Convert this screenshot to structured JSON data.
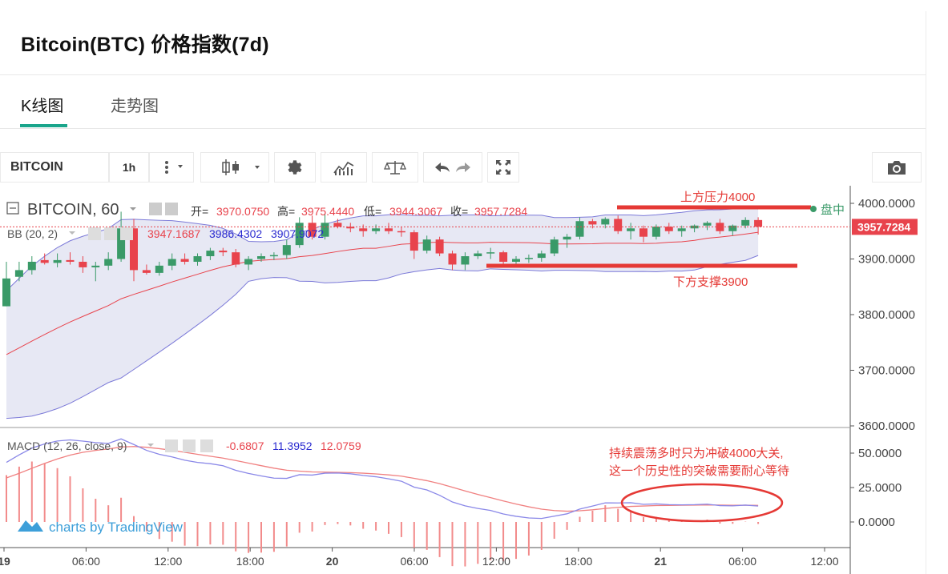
{
  "page": {
    "title": "Bitcoin(BTC) 价格指数(7d)",
    "tabs": [
      {
        "label": "K线图",
        "active": true
      },
      {
        "label": "走势图",
        "active": false
      }
    ]
  },
  "toolbar": {
    "symbol": "BITCOIN",
    "interval": "1h",
    "icons": [
      "more-vert-icon",
      "chevron-down-icon",
      "candles-icon",
      "chevron-down-icon",
      "gear-icon",
      "indicators-icon",
      "compare-icon",
      "undo-icon",
      "redo-icon",
      "fullscreen-icon",
      "camera-icon"
    ]
  },
  "legend": {
    "symbol": "BITCOIN, 60",
    "open_label": "开=",
    "open": "3970.0750",
    "high_label": "高=",
    "high": "3975.4440",
    "low_label": "低=",
    "low": "3944.3067",
    "close_label": "收=",
    "close": "3957.7284",
    "bb_label": "BB (20, 2)",
    "bb_mid": "3947.1687",
    "bb_upper": "3986.4302",
    "bb_lower": "3907.9072",
    "macd_label": "MACD (12, 26, close, 9)",
    "macd_hist": "-0.6807",
    "macd_line": "11.3952",
    "macd_signal": "12.0759"
  },
  "annotations": {
    "resistance": "上方压力4000",
    "support": "下方支撑3900",
    "note_line1": "持续震荡多时只为冲破4000大关,",
    "note_line2": "这一个历史性的突破需要耐心等待",
    "live": "盘中"
  },
  "watermark": "charts by TradingView",
  "colors": {
    "up": "#3a9a68",
    "down": "#e8434c",
    "bb_band": "#7b79d8",
    "bb_fill": "#e3e4f2",
    "bb_mid": "#e8434c",
    "macd": "#8a88e8",
    "signal": "#f08080",
    "hist": "#f28b8b",
    "annotation": "#e53935",
    "accent": "#1aa58b"
  },
  "chart_data": {
    "type": "candlestick",
    "price_axis": {
      "ticks": [
        3600,
        3700,
        3800,
        3900,
        4000
      ],
      "tick_labels": [
        "3600.0000",
        "3700.0000",
        "3800.0000",
        "3900.0000",
        "4000.0000"
      ],
      "last_price": "3957.7284"
    },
    "macd_axis": {
      "ticks": [
        0,
        25,
        50
      ],
      "tick_labels": [
        "0.0000",
        "25.0000",
        "50.0000"
      ]
    },
    "time_axis": {
      "tick_labels": [
        "19",
        "06:00",
        "12:00",
        "18:00",
        "20",
        "06:00",
        "12:00",
        "18:00",
        "21",
        "06:00",
        "12:00"
      ]
    },
    "resistance_level": 4000,
    "support_level": 3900,
    "candles": [
      [
        3815,
        3895,
        3815,
        3865
      ],
      [
        3868,
        3895,
        3860,
        3880
      ],
      [
        3880,
        3905,
        3872,
        3895
      ],
      [
        3898,
        3910,
        3890,
        3893
      ],
      [
        3893,
        3910,
        3885,
        3898
      ],
      [
        3898,
        3912,
        3890,
        3895
      ],
      [
        3895,
        3905,
        3875,
        3885
      ],
      [
        3885,
        3895,
        3860,
        3888
      ],
      [
        3888,
        3912,
        3880,
        3900
      ],
      [
        3900,
        3985,
        3895,
        3955
      ],
      [
        3955,
        3972,
        3860,
        3880
      ],
      [
        3880,
        3890,
        3872,
        3875
      ],
      [
        3875,
        3895,
        3870,
        3888
      ],
      [
        3888,
        3910,
        3880,
        3900
      ],
      [
        3900,
        3910,
        3890,
        3895
      ],
      [
        3895,
        3910,
        3888,
        3905
      ],
      [
        3905,
        3920,
        3898,
        3915
      ],
      [
        3915,
        3920,
        3905,
        3912
      ],
      [
        3912,
        3918,
        3885,
        3890
      ],
      [
        3890,
        3905,
        3880,
        3900
      ],
      [
        3900,
        3910,
        3895,
        3905
      ],
      [
        3905,
        3912,
        3898,
        3907
      ],
      [
        3907,
        3935,
        3900,
        3925
      ],
      [
        3925,
        3975,
        3920,
        3965
      ],
      [
        3965,
        3978,
        3935,
        3940
      ],
      [
        3940,
        3980,
        3935,
        3965
      ],
      [
        3965,
        3972,
        3955,
        3958
      ],
      [
        3958,
        3965,
        3948,
        3955
      ],
      [
        3955,
        3962,
        3940,
        3950
      ],
      [
        3950,
        3962,
        3945,
        3955
      ],
      [
        3955,
        3965,
        3945,
        3950
      ],
      [
        3950,
        3958,
        3940,
        3948
      ],
      [
        3948,
        3952,
        3900,
        3915
      ],
      [
        3915,
        3942,
        3910,
        3935
      ],
      [
        3935,
        3940,
        3905,
        3910
      ],
      [
        3910,
        3915,
        3880,
        3890
      ],
      [
        3890,
        3912,
        3880,
        3905
      ],
      [
        3905,
        3915,
        3900,
        3910
      ],
      [
        3910,
        3920,
        3900,
        3912
      ],
      [
        3912,
        3915,
        3885,
        3895
      ],
      [
        3895,
        3905,
        3888,
        3900
      ],
      [
        3900,
        3908,
        3893,
        3902
      ],
      [
        3902,
        3915,
        3895,
        3910
      ],
      [
        3910,
        3940,
        3905,
        3935
      ],
      [
        3935,
        3945,
        3920,
        3940
      ],
      [
        3940,
        3975,
        3935,
        3968
      ],
      [
        3968,
        3972,
        3955,
        3962
      ],
      [
        3962,
        3975,
        3955,
        3972
      ],
      [
        3972,
        3978,
        3945,
        3950
      ],
      [
        3950,
        3965,
        3935,
        3955
      ],
      [
        3955,
        3960,
        3930,
        3940
      ],
      [
        3940,
        3962,
        3935,
        3958
      ],
      [
        3958,
        3965,
        3945,
        3950
      ],
      [
        3950,
        3960,
        3940,
        3955
      ],
      [
        3955,
        3962,
        3948,
        3960
      ],
      [
        3960,
        3968,
        3952,
        3965
      ],
      [
        3965,
        3972,
        3945,
        3950
      ],
      [
        3950,
        3962,
        3942,
        3960
      ],
      [
        3960,
        3975,
        3955,
        3970
      ],
      [
        3970,
        3975,
        3944,
        3958
      ]
    ]
  }
}
